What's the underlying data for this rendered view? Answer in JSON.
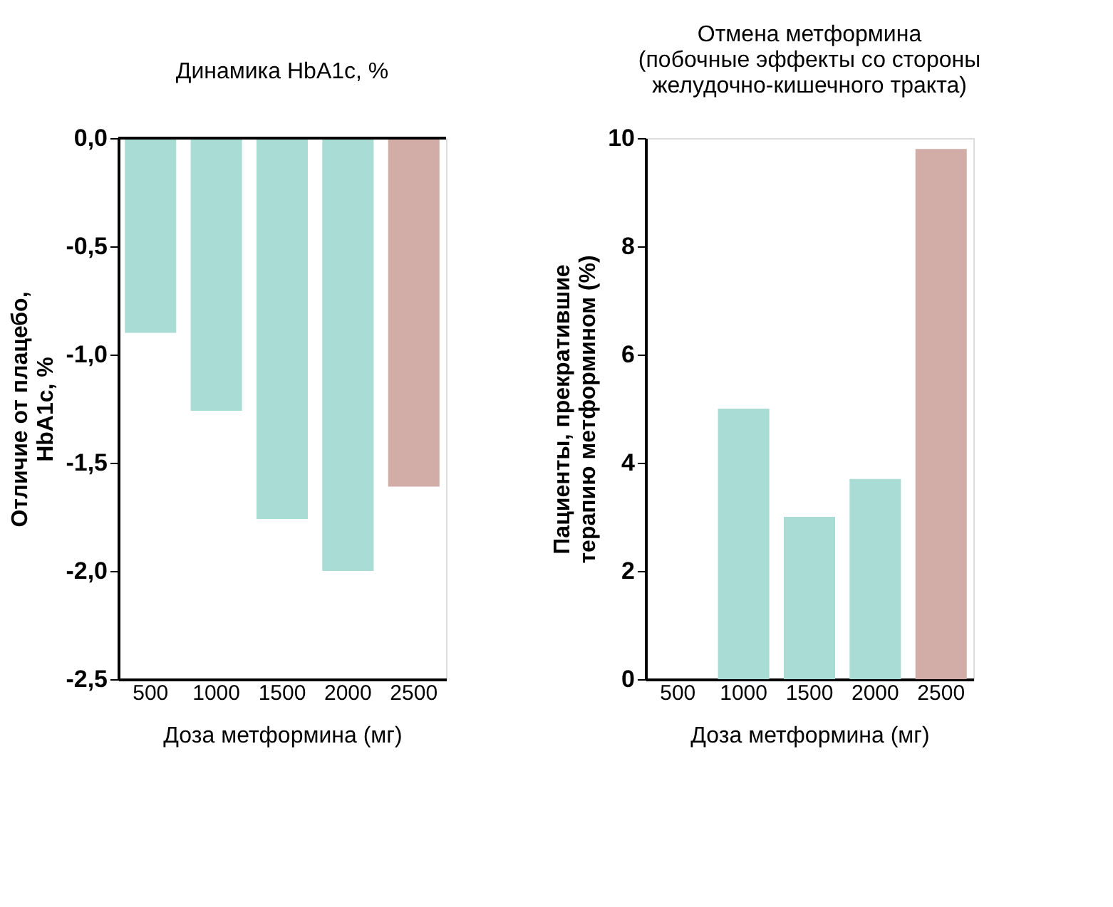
{
  "chart_data": [
    {
      "type": "bar",
      "title": "Динамика HbA1c, %",
      "xlabel": "Доза метформина (мг)",
      "ylabel": "Отличие от плацебо,\nHbA1c, %",
      "categories": [
        "500",
        "1000",
        "1500",
        "2000",
        "2500"
      ],
      "values": [
        -0.9,
        -1.26,
        -1.76,
        -2.0,
        -1.61
      ],
      "colors": [
        "#a9dcd5",
        "#a9dcd5",
        "#a9dcd5",
        "#a9dcd5",
        "#d2aca6"
      ],
      "ylim": [
        -2.5,
        0
      ],
      "yticks": [
        {
          "value": 0,
          "label": "0,0"
        },
        {
          "value": -0.5,
          "label": "-0,5"
        },
        {
          "value": -1,
          "label": "-1,0"
        },
        {
          "value": -1.5,
          "label": "-1,5"
        },
        {
          "value": -2,
          "label": "-2,0"
        },
        {
          "value": -2.5,
          "label": "-2,5"
        }
      ],
      "ref_lines": [
        {
          "axis": "y",
          "value": 0,
          "label": null,
          "color": "#000000"
        }
      ],
      "grid": false
    },
    {
      "type": "bar",
      "title": "Отмена метформина\n(побочные эффекты со стороны\nжелудочно-кишечного тракта)",
      "xlabel": "Доза метформина (мг)",
      "ylabel": "Пациенты, прекратившие\nтерапию метформином (%)",
      "categories": [
        "500",
        "1000",
        "1500",
        "2000",
        "2500"
      ],
      "values": [
        0,
        5.0,
        3.0,
        3.7,
        9.8
      ],
      "colors": [
        "#a9dcd5",
        "#a9dcd5",
        "#a9dcd5",
        "#a9dcd5",
        "#d2aca6"
      ],
      "ylim": [
        0,
        10
      ],
      "yticks": [
        0,
        2,
        4,
        6,
        8,
        10
      ],
      "grid": false
    }
  ]
}
